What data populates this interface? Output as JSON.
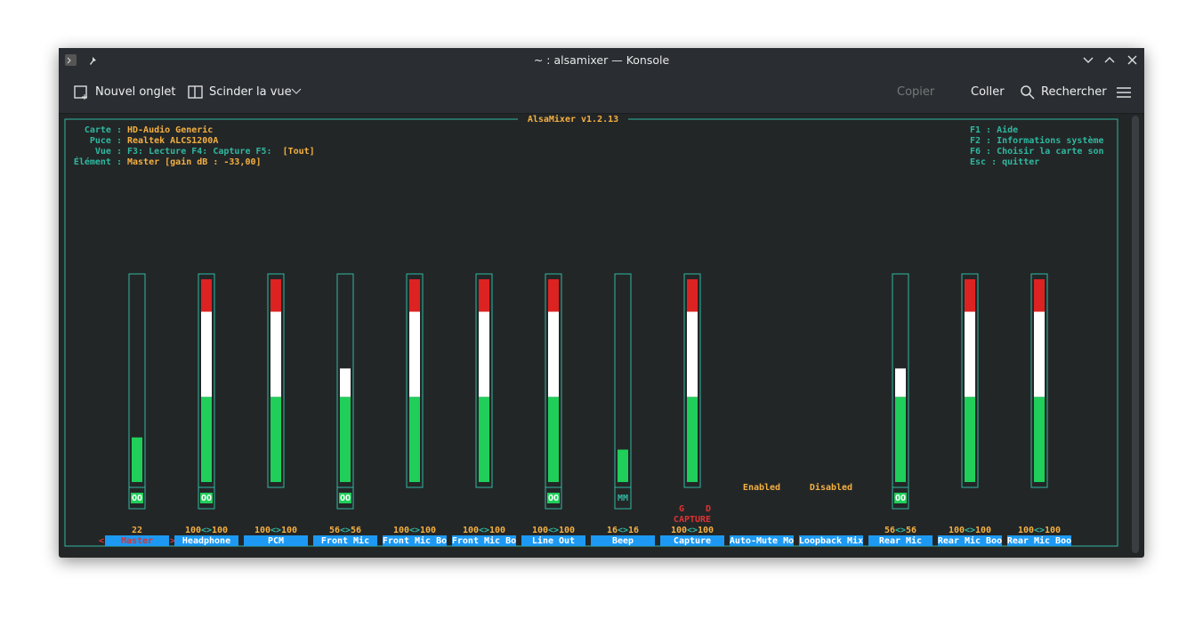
{
  "window": {
    "title": "~ : alsamixer — Konsole"
  },
  "toolbar": {
    "new_tab": "Nouvel onglet",
    "split_view": "Scinder la vue",
    "copy": "Copier",
    "paste": "Coller",
    "search": "Rechercher"
  },
  "mixer": {
    "title": "AlsaMixer v1.2.13",
    "info": [
      {
        "label": "Carte :",
        "value": "HD-Audio Generic"
      },
      {
        "label": "Puce :",
        "value": "Realtek ALCS1200A"
      },
      {
        "label": "Vue :",
        "value": "F3: Lecture  F4: Capture  F5:",
        "extra": "[Tout]"
      },
      {
        "label": "Élément :",
        "value": "Master [gain dB : -33,00]"
      }
    ],
    "help": [
      "F1 :  Aide",
      "F2 :  Informations système",
      "F6 :  Choisir la carte son",
      "Esc : quitter"
    ],
    "level_separator": "<>",
    "selection_markers": [
      "<",
      ">"
    ],
    "channels": [
      {
        "name": "Master",
        "levels": [
          22
        ],
        "mute": "OO",
        "selected": true
      },
      {
        "name": "Headphone",
        "levels": [
          100,
          100
        ],
        "mute": "OO"
      },
      {
        "name": "PCM",
        "levels": [
          100,
          100
        ]
      },
      {
        "name": "Front Mic",
        "levels": [
          56,
          56
        ],
        "mute": "OO"
      },
      {
        "name": "Front Mic Bo",
        "levels": [
          100,
          100
        ]
      },
      {
        "name": "Front Mic Bo",
        "levels": [
          100,
          100
        ]
      },
      {
        "name": "Line Out",
        "levels": [
          100,
          100
        ],
        "mute": "OO"
      },
      {
        "name": "Beep",
        "levels": [
          16,
          16
        ],
        "mute": "MM"
      },
      {
        "name": "Capture",
        "levels": [
          100,
          100
        ],
        "capture": [
          "G",
          "D",
          "CAPTURE"
        ]
      },
      {
        "name": "Auto-Mute Mo",
        "enum": "Enabled"
      },
      {
        "name": "Loopback Mix",
        "enum": "Disabled"
      },
      {
        "name": "Rear Mic",
        "levels": [
          56,
          56
        ],
        "mute": "OO"
      },
      {
        "name": "Rear Mic Boo",
        "levels": [
          100,
          100
        ]
      },
      {
        "name": "Rear Mic Boo",
        "levels": [
          100,
          100
        ]
      }
    ]
  }
}
